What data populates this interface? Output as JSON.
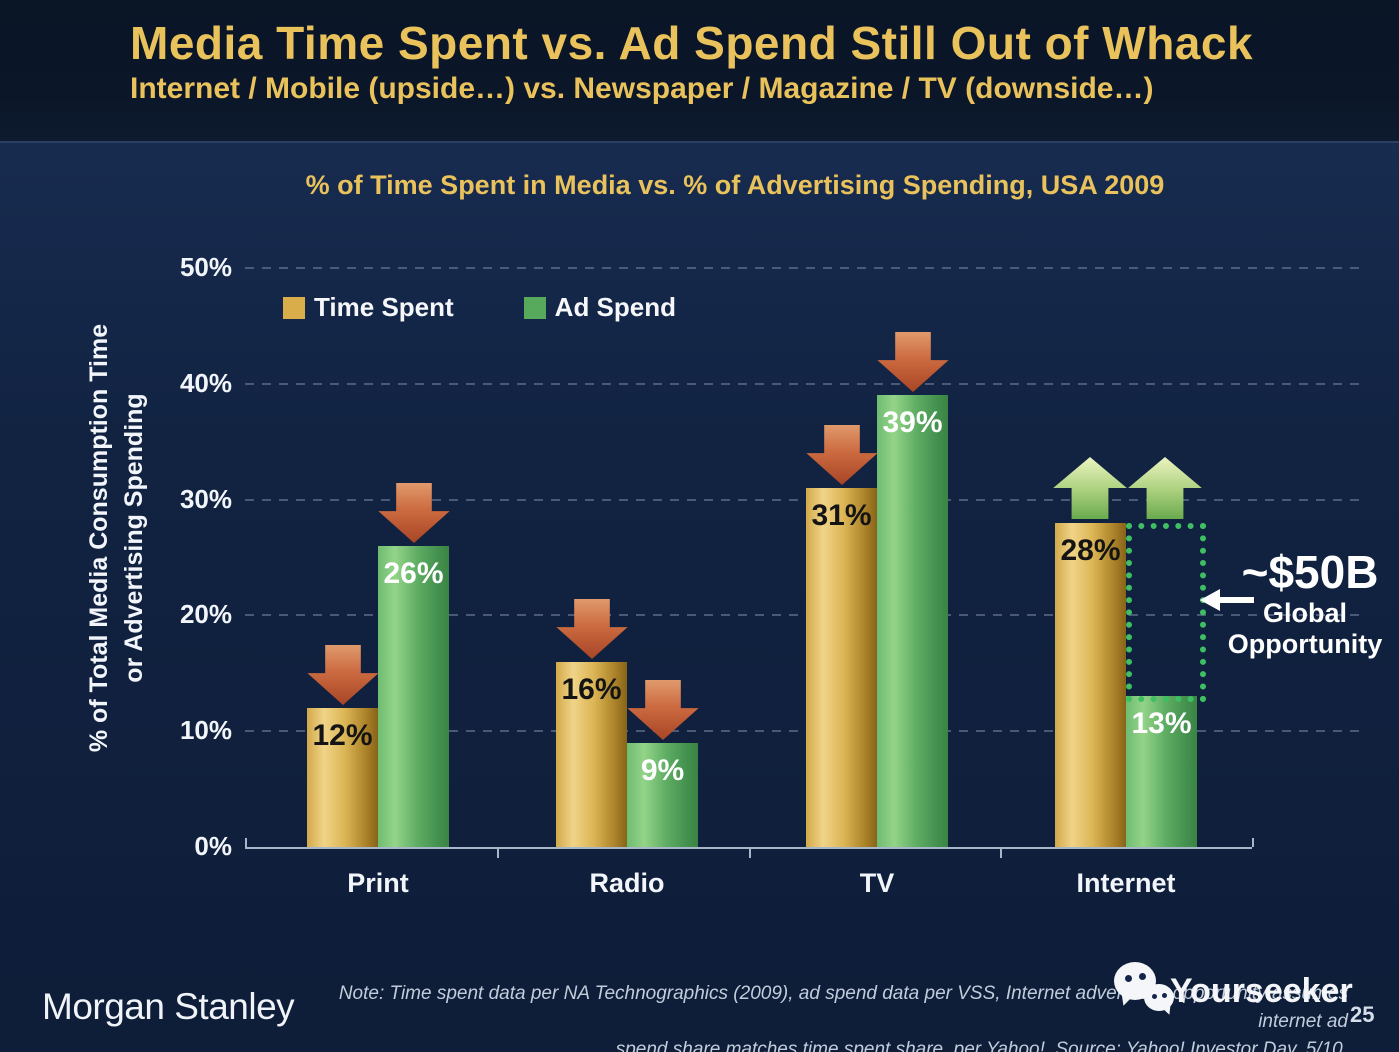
{
  "slide": {
    "title": "Media Time Spent vs. Ad Spend Still Out of Whack",
    "subtitle": "Internet / Mobile (upside…) vs. Newspaper / Magazine / TV (downside…)",
    "page_number": "25"
  },
  "chart_data": {
    "type": "bar",
    "title": "% of Time Spent in Media vs. % of Advertising Spending, USA 2009",
    "categories": [
      "Print",
      "Radio",
      "TV",
      "Internet"
    ],
    "series": [
      {
        "name": "Time Spent",
        "color": "#d9ae4a",
        "values": [
          12,
          16,
          31,
          28
        ]
      },
      {
        "name": "Ad Spend",
        "color": "#57a95c",
        "values": [
          26,
          9,
          39,
          13
        ]
      }
    ],
    "value_label_format": "percent",
    "ylabel_line1": "% of Total Media Consumption Time",
    "ylabel_line2": "or Advertising Spending",
    "ylim": [
      0,
      50
    ],
    "yticks": [
      0,
      10,
      20,
      30,
      40,
      50
    ],
    "grid": "dashed-horizontal",
    "legend_position": "top-left-inside",
    "trend_arrows": [
      "down",
      "down",
      "down",
      "up"
    ],
    "opportunity_box": {
      "category": "Internet",
      "from_value": 28,
      "to_value": 13
    },
    "annotation": {
      "headline": "~$50B",
      "line1": "Global",
      "line2": "Opportunity"
    },
    "colors": {
      "down_arrow": "#c05a32",
      "up_arrow": "#8dc263",
      "opportunity_dotted": "#3fbf63",
      "title_gold": "#e9c25c"
    }
  },
  "footer": {
    "logo": "Morgan Stanley",
    "note_line1": "Note: Time spent data per NA Technographics (2009), ad spend data per VSS, Internet advertising opportunity assumes internet ad",
    "note_line2": "spend share matches time spent share, per Yahoo!. Source: Yahoo! Investor Day, 5/10.",
    "watermark": "Yourseeker"
  }
}
